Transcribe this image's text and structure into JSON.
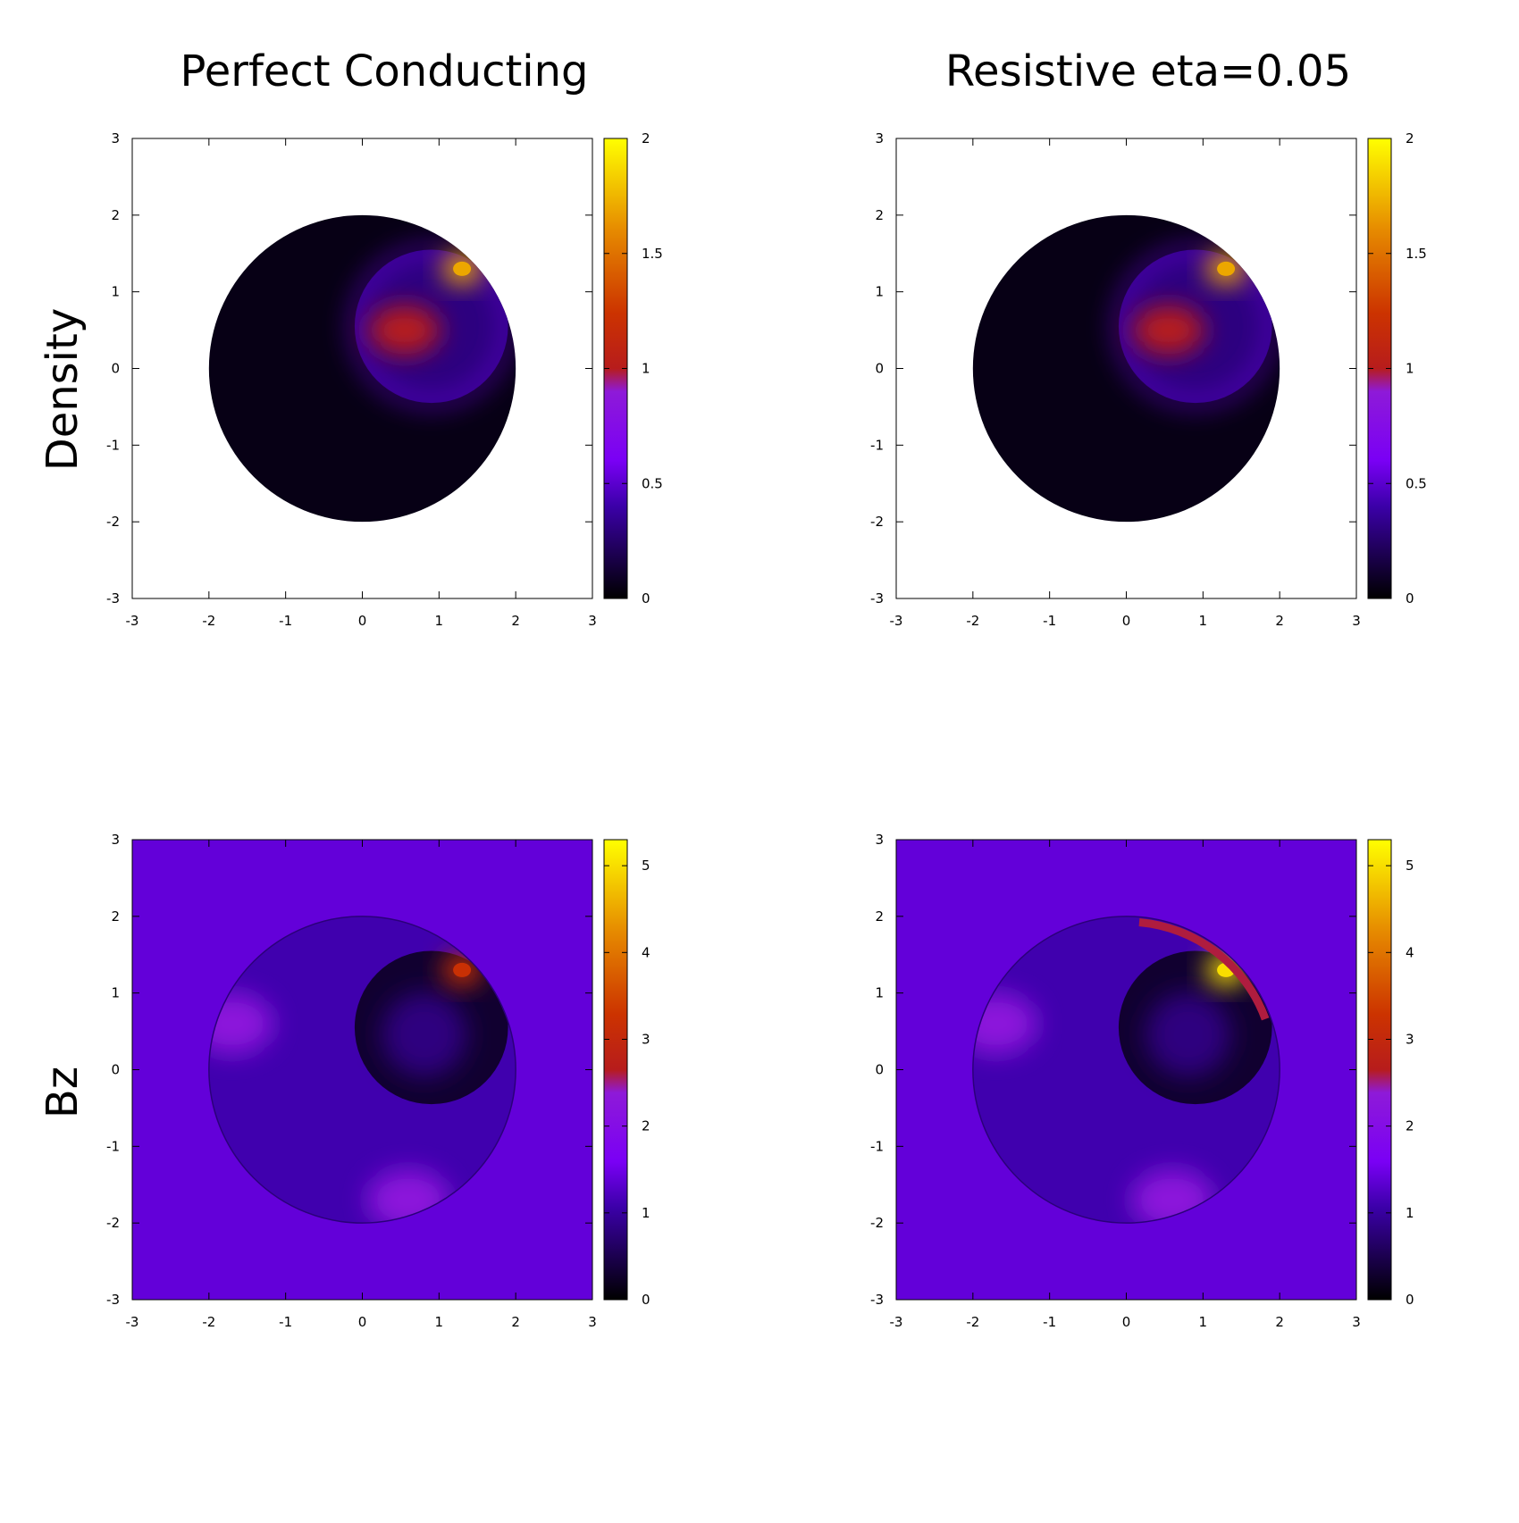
{
  "columns": [
    {
      "title": "Perfect Conducting"
    },
    {
      "title": "Resistive eta=0.05"
    }
  ],
  "rows": [
    {
      "title": "Density"
    },
    {
      "title": "Bz"
    }
  ],
  "colormap": {
    "name": "gnuplot-hot",
    "stops": [
      {
        "t": 0.0,
        "color": "#000000"
      },
      {
        "t": 0.2,
        "color": "#3b00a8"
      },
      {
        "t": 0.3,
        "color": "#7a00f5"
      },
      {
        "t": 0.45,
        "color": "#8e1ad8"
      },
      {
        "t": 0.5,
        "color": "#b71c1c"
      },
      {
        "t": 0.62,
        "color": "#cc3300"
      },
      {
        "t": 0.8,
        "color": "#e68a00"
      },
      {
        "t": 1.0,
        "color": "#ffff00"
      }
    ]
  },
  "chart_data": [
    {
      "type": "heatmap",
      "name": "density-perfect",
      "title": "",
      "xlim": [
        -3,
        3
      ],
      "ylim": [
        -3,
        3
      ],
      "xticks": [
        "-3",
        "-2",
        "-1",
        "0",
        "1",
        "2",
        "3"
      ],
      "yticks": [
        "-3",
        "-2",
        "-1",
        "0",
        "1",
        "2",
        "3"
      ],
      "colorbar": {
        "range": [
          0,
          2
        ],
        "ticks": [
          "0",
          "0.5",
          "1",
          "1.5",
          "2"
        ]
      },
      "domain": {
        "shape": "disk",
        "center": [
          0,
          0
        ],
        "radius": 2
      },
      "background_value": null,
      "fill_value": 0.05,
      "features": [
        {
          "kind": "ring",
          "center": [
            0.9,
            0.55
          ],
          "radius": 1.0,
          "value": 0.55
        },
        {
          "kind": "blob",
          "center": [
            0.55,
            0.5
          ],
          "value": 1.0
        },
        {
          "kind": "hot-spot",
          "center": [
            1.3,
            1.3
          ],
          "value": 1.7
        }
      ]
    },
    {
      "type": "heatmap",
      "name": "density-resistive",
      "title": "",
      "xlim": [
        -3,
        3
      ],
      "ylim": [
        -3,
        3
      ],
      "xticks": [
        "-3",
        "-2",
        "-1",
        "0",
        "1",
        "2",
        "3"
      ],
      "yticks": [
        "-3",
        "-2",
        "-1",
        "0",
        "1",
        "2",
        "3"
      ],
      "colorbar": {
        "range": [
          0,
          2
        ],
        "ticks": [
          "0",
          "0.5",
          "1",
          "1.5",
          "2"
        ]
      },
      "domain": {
        "shape": "disk",
        "center": [
          0,
          0
        ],
        "radius": 2
      },
      "background_value": null,
      "fill_value": 0.05,
      "features": [
        {
          "kind": "ring",
          "center": [
            0.9,
            0.55
          ],
          "radius": 1.0,
          "value": 0.55
        },
        {
          "kind": "blob",
          "center": [
            0.55,
            0.5
          ],
          "value": 1.0
        },
        {
          "kind": "hot-spot",
          "center": [
            1.3,
            1.3
          ],
          "value": 1.7
        }
      ]
    },
    {
      "type": "heatmap",
      "name": "bz-perfect",
      "title": "",
      "xlim": [
        -3,
        3
      ],
      "ylim": [
        -3,
        3
      ],
      "xticks": [
        "-3",
        "-2",
        "-1",
        "0",
        "1",
        "2",
        "3"
      ],
      "yticks": [
        "-3",
        "-2",
        "-1",
        "0",
        "1",
        "2",
        "3"
      ],
      "colorbar": {
        "range": [
          0,
          5.3
        ],
        "ticks": [
          "0",
          "1",
          "2",
          "3",
          "4",
          "5"
        ]
      },
      "domain": {
        "shape": "disk",
        "center": [
          0,
          0
        ],
        "radius": 2
      },
      "background_value": 1.4,
      "fill_value": 1.1,
      "features": [
        {
          "kind": "dark-disk",
          "center": [
            0.9,
            0.55
          ],
          "radius": 1.0,
          "value": 0.3
        },
        {
          "kind": "hot-spot",
          "center": [
            1.3,
            1.3
          ],
          "value": 3.2
        },
        {
          "kind": "warm-wedge",
          "center": [
            -1.7,
            0.6
          ],
          "value": 2.3
        },
        {
          "kind": "warm-wedge",
          "center": [
            0.6,
            -1.7
          ],
          "value": 2.3
        }
      ]
    },
    {
      "type": "heatmap",
      "name": "bz-resistive",
      "title": "",
      "xlim": [
        -3,
        3
      ],
      "ylim": [
        -3,
        3
      ],
      "xticks": [
        "-3",
        "-2",
        "-1",
        "0",
        "1",
        "2",
        "3"
      ],
      "yticks": [
        "-3",
        "-2",
        "-1",
        "0",
        "1",
        "2",
        "3"
      ],
      "colorbar": {
        "range": [
          0,
          5.3
        ],
        "ticks": [
          "0",
          "1",
          "2",
          "3",
          "4",
          "5"
        ]
      },
      "domain": {
        "shape": "disk",
        "center": [
          0,
          0
        ],
        "radius": 2
      },
      "background_value": 1.4,
      "fill_value": 1.1,
      "features": [
        {
          "kind": "dark-disk",
          "center": [
            0.9,
            0.55
          ],
          "radius": 1.0,
          "value": 0.3
        },
        {
          "kind": "hot-spot",
          "center": [
            1.3,
            1.3
          ],
          "value": 5.0
        },
        {
          "kind": "rim-arc",
          "center": [
            1.5,
            1.1
          ],
          "value": 2.6
        },
        {
          "kind": "warm-wedge",
          "center": [
            -1.7,
            0.6
          ],
          "value": 2.3
        },
        {
          "kind": "warm-wedge",
          "center": [
            0.6,
            -1.7
          ],
          "value": 2.3
        }
      ]
    }
  ]
}
